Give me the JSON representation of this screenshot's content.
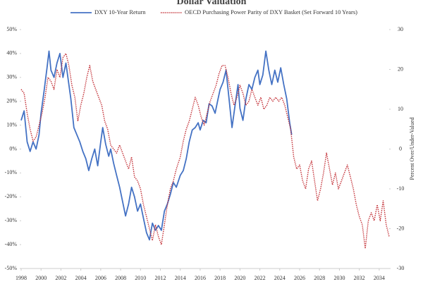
{
  "chart_data": {
    "type": "line",
    "title": "Dollar Valuation",
    "y2_label": "Percent Over/Under-Valued",
    "xlim": [
      1998,
      2035
    ],
    "xticks": [
      1998,
      2000,
      2002,
      2004,
      2006,
      2008,
      2010,
      2012,
      2014,
      2016,
      2018,
      2020,
      2022,
      2024,
      2026,
      2028,
      2030,
      2032,
      2034
    ],
    "ylim": [
      -50,
      50
    ],
    "yticks": [
      {
        "value": 50,
        "label": "50%"
      },
      {
        "value": 40,
        "label": "40%"
      },
      {
        "value": 30,
        "label": "30%"
      },
      {
        "value": 20,
        "label": "20%"
      },
      {
        "value": 10,
        "label": "10%"
      },
      {
        "value": 0,
        "label": "0%"
      },
      {
        "value": -10,
        "label": "-10%"
      },
      {
        "value": -20,
        "label": "-20%"
      },
      {
        "value": -30,
        "label": "-30%"
      },
      {
        "value": -40,
        "label": "-40%"
      },
      {
        "value": -50,
        "label": "-50%"
      }
    ],
    "y2lim": [
      -30,
      30
    ],
    "y2ticks": [
      30,
      20,
      10,
      0,
      -10,
      -20,
      -30
    ],
    "legend": "top",
    "series": [
      {
        "name": "DXY 10-Year Return",
        "color": "#4472c4",
        "style": "solid",
        "x": [
          1998.0,
          1998.3,
          1998.6,
          1998.9,
          1999.2,
          1999.5,
          1999.8,
          2000.0,
          2000.3,
          2000.6,
          2000.8,
          2001.0,
          2001.3,
          2001.6,
          2001.9,
          2002.2,
          2002.5,
          2002.8,
          2003.0,
          2003.3,
          2003.6,
          2003.9,
          2004.2,
          2004.5,
          2004.8,
          2005.1,
          2005.4,
          2005.7,
          2006.0,
          2006.2,
          2006.5,
          2006.8,
          2007.0,
          2007.3,
          2007.6,
          2007.9,
          2008.2,
          2008.5,
          2008.8,
          2009.1,
          2009.4,
          2009.7,
          2010.0,
          2010.3,
          2010.6,
          2010.9,
          2011.2,
          2011.5,
          2011.8,
          2012.1,
          2012.4,
          2012.7,
          2013.0,
          2013.3,
          2013.6,
          2014.0,
          2014.3,
          2014.6,
          2014.9,
          2015.2,
          2015.5,
          2015.8,
          2016.0,
          2016.3,
          2016.6,
          2016.9,
          2017.2,
          2017.5,
          2017.8,
          2018.0,
          2018.3,
          2018.6,
          2018.9,
          2019.2,
          2019.5,
          2019.8,
          2020.0,
          2020.3,
          2020.6,
          2020.9,
          2021.2,
          2021.5,
          2021.8,
          2022.0,
          2022.3,
          2022.6,
          2022.9,
          2023.2,
          2023.5,
          2023.8,
          2024.1,
          2024.4,
          2024.7,
          2025.0,
          2025.2
        ],
        "values": [
          12,
          16,
          3,
          -1,
          3,
          0,
          6,
          15,
          24,
          34,
          41,
          33,
          30,
          36,
          40,
          30,
          36,
          27,
          21,
          9,
          6,
          3,
          -1,
          -4,
          -9,
          -4,
          0,
          -7,
          3,
          9,
          2,
          -3,
          0,
          -6,
          -11,
          -16,
          -22,
          -28,
          -23,
          -16,
          -20,
          -26,
          -23,
          -29,
          -35,
          -38,
          -31,
          -34,
          -32,
          -34,
          -26,
          -23,
          -19,
          -14,
          -16,
          -11,
          -9,
          -4,
          3,
          8,
          9,
          11,
          8,
          12,
          11,
          19,
          18,
          15,
          21,
          25,
          28,
          33,
          21,
          9,
          18,
          27,
          17,
          12,
          21,
          27,
          25,
          30,
          33,
          27,
          31,
          41,
          33,
          27,
          33,
          28,
          34,
          27,
          21,
          11,
          6
        ]
      },
      {
        "name": "OECD Purchasing Power Parity of DXY Basket (Set Forward 10 Years)",
        "color": "#c0262d",
        "style": "dotted",
        "axis": "y2",
        "x": [
          1998.0,
          1998.3,
          1998.6,
          1998.9,
          1999.2,
          1999.5,
          1999.8,
          2000.1,
          2000.4,
          2000.7,
          2001.0,
          2001.3,
          2001.6,
          2001.9,
          2002.2,
          2002.5,
          2002.8,
          2003.1,
          2003.4,
          2003.7,
          2004.0,
          2004.3,
          2004.6,
          2004.9,
          2005.2,
          2005.5,
          2005.8,
          2006.1,
          2006.4,
          2006.7,
          2007.0,
          2007.3,
          2007.6,
          2007.9,
          2008.2,
          2008.5,
          2008.8,
          2009.1,
          2009.4,
          2009.7,
          2010.0,
          2010.3,
          2010.6,
          2010.9,
          2011.2,
          2011.5,
          2011.8,
          2012.1,
          2012.4,
          2012.7,
          2013.0,
          2013.3,
          2013.6,
          2014.0,
          2014.3,
          2014.6,
          2014.9,
          2015.2,
          2015.5,
          2015.8,
          2016.1,
          2016.4,
          2016.7,
          2017.0,
          2017.3,
          2017.6,
          2017.9,
          2018.2,
          2018.5,
          2018.8,
          2019.1,
          2019.4,
          2019.7,
          2020.0,
          2020.3,
          2020.6,
          2020.9,
          2021.2,
          2021.5,
          2021.8,
          2022.1,
          2022.4,
          2022.7,
          2023.0,
          2023.3,
          2023.6,
          2023.9,
          2024.2,
          2024.5,
          2024.8,
          2025.1,
          2025.4,
          2025.7,
          2026.0,
          2026.3,
          2026.6,
          2026.9,
          2027.2,
          2027.5,
          2027.8,
          2028.1,
          2028.4,
          2028.7,
          2029.0,
          2029.3,
          2029.6,
          2029.9,
          2030.2,
          2030.5,
          2030.8,
          2031.1,
          2031.4,
          2031.7,
          2032.0,
          2032.3,
          2032.6,
          2032.9,
          2033.2,
          2033.5,
          2033.8,
          2034.1,
          2034.4,
          2034.7,
          2035.0
        ],
        "values": [
          15,
          14,
          9,
          5,
          2,
          3,
          6,
          9,
          13,
          18,
          17,
          15,
          20,
          18,
          23,
          24,
          21,
          16,
          13,
          7,
          11,
          14,
          18,
          21,
          17,
          15,
          13,
          11,
          7,
          5,
          1,
          0,
          -1,
          1,
          -1,
          -3,
          -5,
          -2,
          -7,
          -8,
          -10,
          -14,
          -17,
          -20,
          -23,
          -19,
          -22,
          -24,
          -19,
          -14,
          -10,
          -8,
          -5,
          -2,
          2,
          5,
          7,
          10,
          13,
          11,
          8,
          6,
          9,
          12,
          14,
          16,
          19,
          21,
          21,
          18,
          14,
          11,
          13,
          16,
          14,
          11,
          12,
          15,
          13,
          11,
          13,
          10,
          11,
          13,
          12,
          13,
          12,
          13,
          11,
          8,
          5,
          -2,
          -5,
          -4,
          -8,
          -10,
          -5,
          -3,
          -8,
          -13,
          -10,
          -6,
          -1,
          -5,
          -9,
          -6,
          -10,
          -8,
          -6,
          -4,
          -7,
          -10,
          -14,
          -17,
          -19,
          -25,
          -18,
          -16,
          -18,
          -14,
          -18,
          -13,
          -19,
          -22
        ]
      }
    ]
  }
}
